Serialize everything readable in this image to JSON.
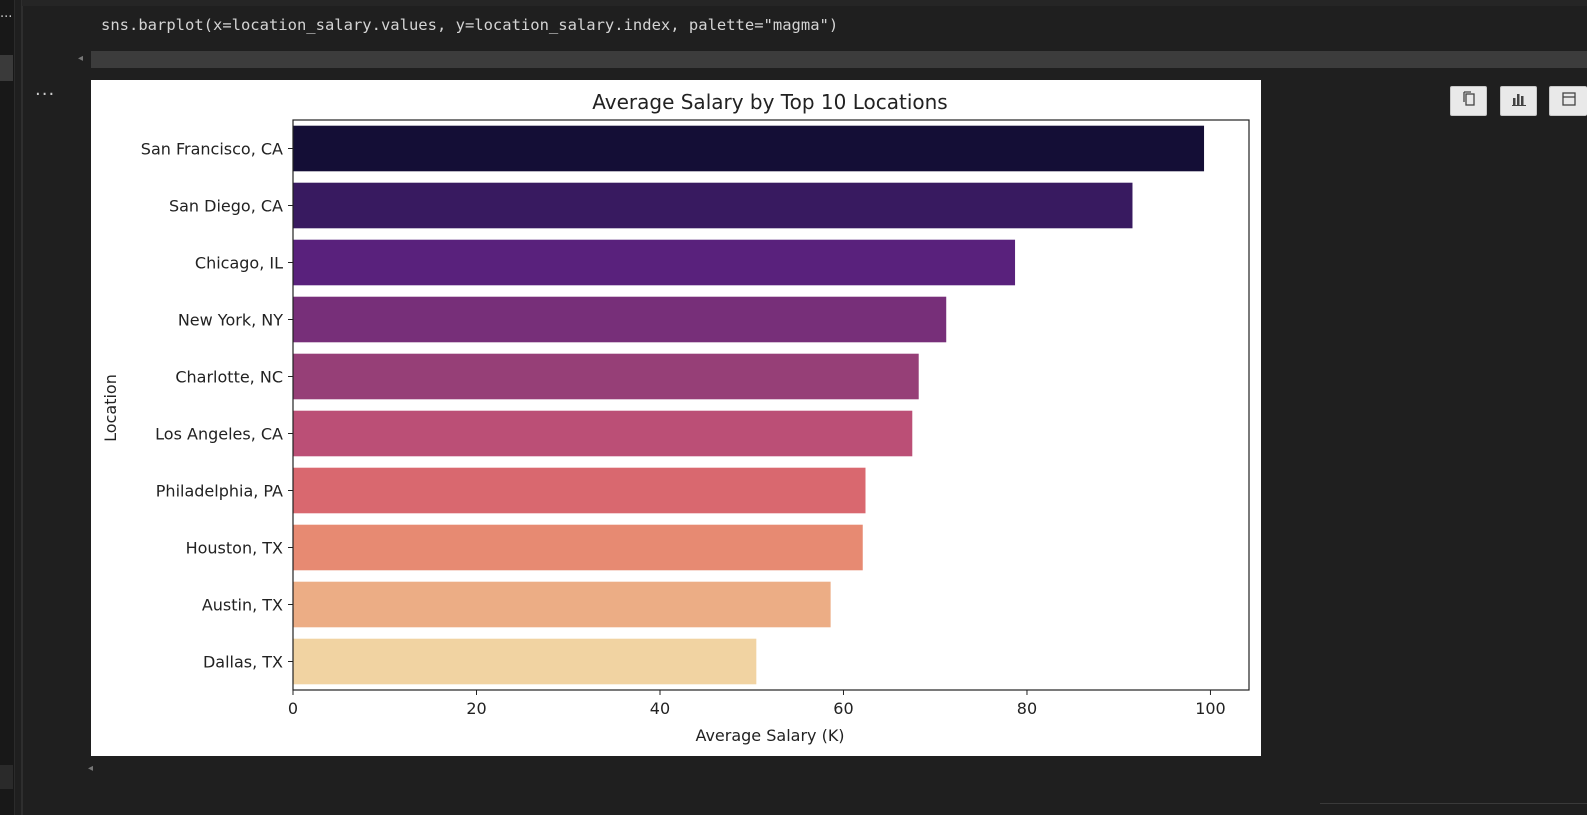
{
  "cell": {
    "code": "sns.barplot(x=location_salary.values, y=location_salary.index, palette=\"magma\")",
    "output_indicator": "...",
    "gutter_indicator": "..."
  },
  "toolbar": {
    "icons": [
      "copy-icon",
      "chart-icon",
      "expand-icon"
    ]
  },
  "chart_data": {
    "type": "bar",
    "orientation": "horizontal",
    "title": "Average Salary by Top 10 Locations",
    "xlabel": "Average Salary (K)",
    "ylabel": "Location",
    "categories": [
      "San Francisco, CA",
      "San Diego, CA",
      "Chicago, IL",
      "New York, NY",
      "Charlotte, NC",
      "Los Angeles, CA",
      "Philadelphia, PA",
      "Houston, TX",
      "Austin, TX",
      "Dallas, TX"
    ],
    "values": [
      99.3,
      91.5,
      78.7,
      71.2,
      68.2,
      67.5,
      62.4,
      62.1,
      58.6,
      50.5
    ],
    "colors": [
      "#140e36",
      "#381a60",
      "#59217c",
      "#772f79",
      "#963f77",
      "#bb4f76",
      "#d9686f",
      "#e78a72",
      "#ecad85",
      "#f1d3a2"
    ],
    "xticks": [
      0,
      20,
      40,
      60,
      80,
      100
    ],
    "xlim": [
      0,
      104.2
    ],
    "grid": false
  }
}
